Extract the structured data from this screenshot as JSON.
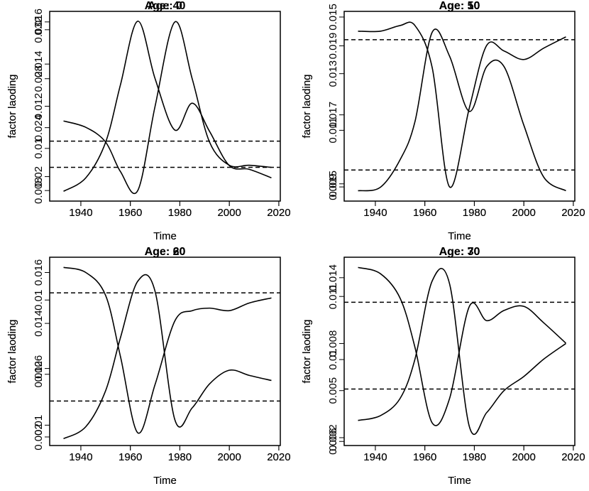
{
  "chart_data": [
    {
      "type": "line",
      "title": "Age: 0",
      "xlabel": "Time",
      "ylabel": "factor laoding",
      "color": "#000000",
      "x": [
        1933,
        1942,
        1950,
        1956,
        1963,
        1970,
        1978,
        1985,
        1992,
        2000,
        2008,
        2017
      ],
      "values": [
        0.0113,
        0.011,
        0.0103,
        0.0089,
        0.008,
        0.012,
        0.016,
        0.0133,
        0.0103,
        0.0092,
        0.0092,
        0.0091
      ],
      "hline": 0.0091,
      "xlim": [
        1927.4,
        2020.6
      ],
      "xticks": [
        1940,
        1960,
        1980,
        2000,
        2020
      ],
      "ylim": [
        0.0075,
        0.0165
      ],
      "yticks": [
        0.008,
        0.01,
        0.012,
        0.014,
        0.016
      ]
    },
    {
      "type": "line",
      "title": "Age: 40",
      "xlabel": "Time",
      "ylabel": "factor laoding",
      "color": "#000000",
      "x": [
        1933,
        1942,
        1950,
        1956,
        1963,
        1970,
        1978,
        1985,
        1992,
        2000,
        2008,
        2017
      ],
      "values": [
        0.0188,
        0.0199,
        0.0228,
        0.0275,
        0.0327,
        0.028,
        0.0238,
        0.026,
        0.0237,
        0.0209,
        0.0206,
        0.0199
      ],
      "hline": 0.0229,
      "xlim": [
        1927.4,
        2020.6
      ],
      "xticks": [
        1940,
        1960,
        1980,
        2000,
        2020
      ],
      "ylim": [
        0.018,
        0.0335
      ],
      "yticks": [
        0.02,
        0.024,
        0.028,
        0.032
      ]
    },
    {
      "type": "line",
      "title": "Age: 10",
      "xlabel": "Time",
      "ylabel": "factor laoding",
      "color": "#000000",
      "x": [
        1933,
        1942,
        1950,
        1956,
        1963,
        1970,
        1978,
        1985,
        1992,
        2000,
        2008,
        2017
      ],
      "values": [
        0.0145,
        0.0145,
        0.0147,
        0.0147,
        0.0132,
        0.009,
        0.0118,
        0.014,
        0.0138,
        0.0135,
        0.0139,
        0.0143
      ],
      "hline": 0.0142,
      "xlim": [
        1927.4,
        2020.6
      ],
      "xticks": [
        1940,
        1960,
        1980,
        2000,
        2020
      ],
      "ylim": [
        0.0085,
        0.0152
      ],
      "yticks": [
        0.009,
        0.011,
        0.013,
        0.015
      ]
    },
    {
      "type": "line",
      "title": "Age: 50",
      "xlabel": "Time",
      "ylabel": "factor laoding",
      "color": "#000000",
      "x": [
        1933,
        1942,
        1950,
        1956,
        1963,
        1970,
        1978,
        1985,
        1992,
        2000,
        2008,
        2017
      ],
      "values": [
        0.0148,
        0.0149,
        0.0157,
        0.0168,
        0.0194,
        0.0187,
        0.0171,
        0.0184,
        0.0184,
        0.0167,
        0.0152,
        0.0148
      ],
      "hline": 0.0154,
      "xlim": [
        1927.4,
        2020.6
      ],
      "xticks": [
        1940,
        1960,
        1980,
        2000,
        2020
      ],
      "ylim": [
        0.0145,
        0.02
      ],
      "yticks": [
        0.015,
        0.017,
        0.019
      ]
    },
    {
      "type": "line",
      "title": "Age: 20",
      "xlabel": "Time",
      "ylabel": "factor laoding",
      "color": "#000000",
      "x": [
        1933,
        1942,
        1950,
        1956,
        1963,
        1970,
        1978,
        1985,
        1992,
        2000,
        2008,
        2017
      ],
      "values": [
        0.0162,
        0.016,
        0.0151,
        0.0127,
        0.0097,
        0.0116,
        0.0141,
        0.0145,
        0.0146,
        0.0145,
        0.0148,
        0.015
      ],
      "hline": 0.0152,
      "xlim": [
        1927.4,
        2020.6
      ],
      "xticks": [
        1940,
        1960,
        1980,
        2000,
        2020
      ],
      "ylim": [
        0.0092,
        0.0166
      ],
      "yticks": [
        0.01,
        0.012,
        0.014,
        0.016
      ]
    },
    {
      "type": "line",
      "title": "Age: 60",
      "xlabel": "Time",
      "ylabel": "factor laoding",
      "color": "#000000",
      "x": [
        1933,
        1942,
        1950,
        1956,
        1963,
        1970,
        1978,
        1985,
        1992,
        2000,
        2008,
        2017
      ],
      "values": [
        0.0019,
        0.0026,
        0.0047,
        0.0078,
        0.0111,
        0.0105,
        0.003,
        0.0037,
        0.0051,
        0.0059,
        0.0056,
        0.0053
      ],
      "hline": 0.0041,
      "xlim": [
        1927.4,
        2020.6
      ],
      "xticks": [
        1940,
        1960,
        1980,
        2000,
        2020
      ],
      "ylim": [
        0.0015,
        0.0125
      ],
      "yticks": [
        0.002,
        0.006,
        0.01
      ]
    },
    {
      "type": "line",
      "title": "Age: 30",
      "xlabel": "Time",
      "ylabel": "factor laoding",
      "color": "#000000",
      "x": [
        1933,
        1942,
        1950,
        1956,
        1963,
        1970,
        1978,
        1985,
        1992,
        2000,
        2008,
        2017
      ],
      "values": [
        0.0145,
        0.0142,
        0.013,
        0.0106,
        0.0069,
        0.0081,
        0.0126,
        0.0119,
        0.0124,
        0.0126,
        0.0118,
        0.0108
      ],
      "hline": 0.0128,
      "xlim": [
        1927.4,
        2020.6
      ],
      "xticks": [
        1940,
        1960,
        1980,
        2000,
        2020
      ],
      "ylim": [
        0.0058,
        0.015
      ],
      "yticks": [
        0.006,
        0.01,
        0.014
      ]
    },
    {
      "type": "line",
      "title": "Age: 70",
      "xlabel": "Time",
      "ylabel": "factor laoding",
      "color": "#000000",
      "x": [
        1933,
        1942,
        1950,
        1956,
        1963,
        1970,
        1978,
        1985,
        1992,
        2000,
        2008,
        2017
      ],
      "values": [
        0.0031,
        0.0034,
        0.0045,
        0.007,
        0.012,
        0.0118,
        0.0027,
        0.0036,
        0.005,
        0.0059,
        0.007,
        0.008
      ],
      "hline": 0.0051,
      "xlim": [
        1927.4,
        2020.6
      ],
      "xticks": [
        1940,
        1960,
        1980,
        2000,
        2020
      ],
      "ylim": [
        0.0015,
        0.0135
      ],
      "yticks": [
        0.002,
        0.005,
        0.008,
        0.011
      ]
    }
  ]
}
